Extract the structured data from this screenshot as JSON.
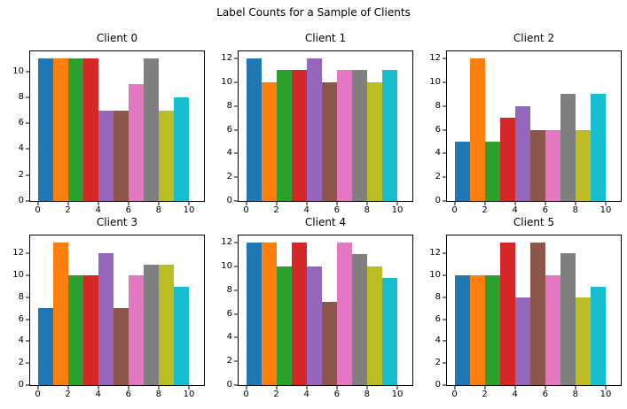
{
  "figure": {
    "suptitle": "Label Counts for a Sample of Clients",
    "background": "#ffffff"
  },
  "palette": [
    "#1f77b4",
    "#ff7f0e",
    "#2ca02c",
    "#d62728",
    "#9467bd",
    "#8c564b",
    "#e377c2",
    "#7f7f7f",
    "#bcbd22",
    "#17becf"
  ],
  "chart_data": [
    {
      "type": "bar",
      "title": "Client 0",
      "bin_edges": [
        0,
        1,
        2,
        3,
        4,
        5,
        6,
        7,
        8,
        9,
        10
      ],
      "values": [
        11,
        11,
        11,
        11,
        7,
        7,
        9,
        11,
        7,
        8
      ],
      "xticks": [
        0,
        2,
        4,
        6,
        8,
        10
      ],
      "yticks": [
        0,
        2,
        4,
        6,
        8,
        10
      ],
      "xlim": [
        -0.5,
        11.0
      ],
      "ylim": [
        0,
        11.55
      ],
      "grid": false,
      "legend": false
    },
    {
      "type": "bar",
      "title": "Client 1",
      "bin_edges": [
        0,
        1,
        2,
        3,
        4,
        5,
        6,
        7,
        8,
        9,
        10
      ],
      "values": [
        12,
        10,
        11,
        11,
        12,
        10,
        11,
        11,
        10,
        11
      ],
      "xticks": [
        0,
        2,
        4,
        6,
        8,
        10
      ],
      "yticks": [
        0,
        2,
        4,
        6,
        8,
        10,
        12
      ],
      "xlim": [
        -0.5,
        11.0
      ],
      "ylim": [
        0,
        12.6
      ],
      "grid": false,
      "legend": false
    },
    {
      "type": "bar",
      "title": "Client 2",
      "bin_edges": [
        0,
        1,
        2,
        3,
        4,
        5,
        6,
        7,
        8,
        9,
        10
      ],
      "values": [
        5,
        12,
        5,
        7,
        8,
        6,
        6,
        9,
        6,
        9
      ],
      "xticks": [
        0,
        2,
        4,
        6,
        8,
        10
      ],
      "yticks": [
        0,
        2,
        4,
        6,
        8,
        10,
        12
      ],
      "xlim": [
        -0.5,
        11.0
      ],
      "ylim": [
        0,
        12.6
      ],
      "grid": false,
      "legend": false
    },
    {
      "type": "bar",
      "title": "Client 3",
      "bin_edges": [
        0,
        1,
        2,
        3,
        4,
        5,
        6,
        7,
        8,
        9,
        10
      ],
      "values": [
        7,
        13,
        10,
        10,
        12,
        7,
        10,
        11,
        11,
        9
      ],
      "xticks": [
        0,
        2,
        4,
        6,
        8,
        10
      ],
      "yticks": [
        0,
        2,
        4,
        6,
        8,
        10,
        12
      ],
      "xlim": [
        -0.5,
        11.0
      ],
      "ylim": [
        0,
        13.65
      ],
      "grid": false,
      "legend": false
    },
    {
      "type": "bar",
      "title": "Client 4",
      "bin_edges": [
        0,
        1,
        2,
        3,
        4,
        5,
        6,
        7,
        8,
        9,
        10
      ],
      "values": [
        12,
        12,
        10,
        12,
        10,
        7,
        12,
        11,
        10,
        9
      ],
      "xticks": [
        0,
        2,
        4,
        6,
        8,
        10
      ],
      "yticks": [
        0,
        2,
        4,
        6,
        8,
        10,
        12
      ],
      "xlim": [
        -0.5,
        11.0
      ],
      "ylim": [
        0,
        12.6
      ],
      "grid": false,
      "legend": false
    },
    {
      "type": "bar",
      "title": "Client 5",
      "bin_edges": [
        0,
        1,
        2,
        3,
        4,
        5,
        6,
        7,
        8,
        9,
        10
      ],
      "values": [
        10,
        10,
        10,
        13,
        8,
        13,
        10,
        12,
        8,
        9
      ],
      "xticks": [
        0,
        2,
        4,
        6,
        8,
        10
      ],
      "yticks": [
        0,
        2,
        4,
        6,
        8,
        10,
        12
      ],
      "xlim": [
        -0.5,
        11.0
      ],
      "ylim": [
        0,
        13.65
      ],
      "grid": false,
      "legend": false
    }
  ]
}
